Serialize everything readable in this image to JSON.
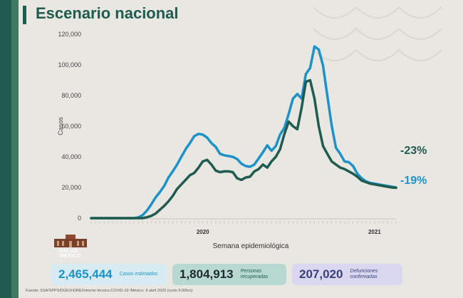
{
  "header": {
    "title": "Escenario nacional"
  },
  "chart_data": {
    "type": "line",
    "xlabel": "Semana epidemiológica",
    "ylabel": "Casos",
    "ylim": [
      0,
      120000
    ],
    "yticks": [
      0,
      20000,
      40000,
      60000,
      80000,
      100000,
      120000
    ],
    "ytick_labels": [
      "0",
      "20,000",
      "40,000",
      "60,000",
      "80,000",
      "100,000",
      "120,000"
    ],
    "xtick_labels": [
      {
        "label": "2020",
        "week": 26
      },
      {
        "label": "2021",
        "week": 66
      }
    ],
    "n_weeks": 72,
    "grid": false,
    "series": [
      {
        "color": "#1c92c8",
        "values": [
          0,
          0,
          0,
          0,
          0,
          0,
          0,
          0,
          0,
          0,
          0,
          500,
          2000,
          5000,
          9000,
          13500,
          17000,
          21000,
          26500,
          30500,
          35000,
          40000,
          45000,
          49000,
          53500,
          55000,
          54500,
          52500,
          49000,
          46500,
          42000,
          41000,
          40500,
          40000,
          38500,
          35500,
          34000,
          33500,
          35000,
          39000,
          43000,
          47500,
          44000,
          47000,
          54500,
          59000,
          68000,
          78000,
          81000,
          78000,
          94000,
          98000,
          112000,
          110000,
          99500,
          80000,
          60500,
          46000,
          42000,
          37000,
          36500,
          34000,
          29000,
          26000,
          24000,
          23000,
          22500,
          22000,
          21500,
          21000,
          20500,
          20000
        ]
      },
      {
        "color": "#1f5b4f",
        "values": [
          0,
          0,
          0,
          0,
          0,
          0,
          0,
          0,
          0,
          0,
          0,
          0,
          0,
          600,
          1500,
          3000,
          5500,
          8000,
          11000,
          14500,
          19000,
          22000,
          25000,
          28000,
          29500,
          33000,
          37000,
          38000,
          35000,
          31000,
          30000,
          30500,
          30500,
          30000,
          26000,
          25000,
          26500,
          27000,
          30500,
          32000,
          35000,
          33000,
          37000,
          40000,
          45000,
          55000,
          63000,
          60000,
          58000,
          72000,
          89000,
          90000,
          78000,
          60000,
          47000,
          42000,
          37000,
          35000,
          33000,
          32000,
          30500,
          29000,
          27000,
          24500,
          23500,
          22500,
          22000,
          21500,
          21000,
          20500,
          20000,
          19800
        ]
      }
    ],
    "annotations": [
      "-23%",
      "-19%"
    ]
  },
  "stats": [
    {
      "value": "2,465,444",
      "label": "Casos estimados"
    },
    {
      "value": "1,804,913",
      "label": "Personas recuperadas"
    },
    {
      "value": "207,020",
      "label": "Defunciones confirmadas"
    }
  ],
  "logo": {
    "text": "SALUD · MÉXICO"
  },
  "source": "Fuente: SSA/SPPS/DGE/InDRE/Informe técnico.COVID-19 /México- 9 abril 2020 (corte 9:00hrs)"
}
